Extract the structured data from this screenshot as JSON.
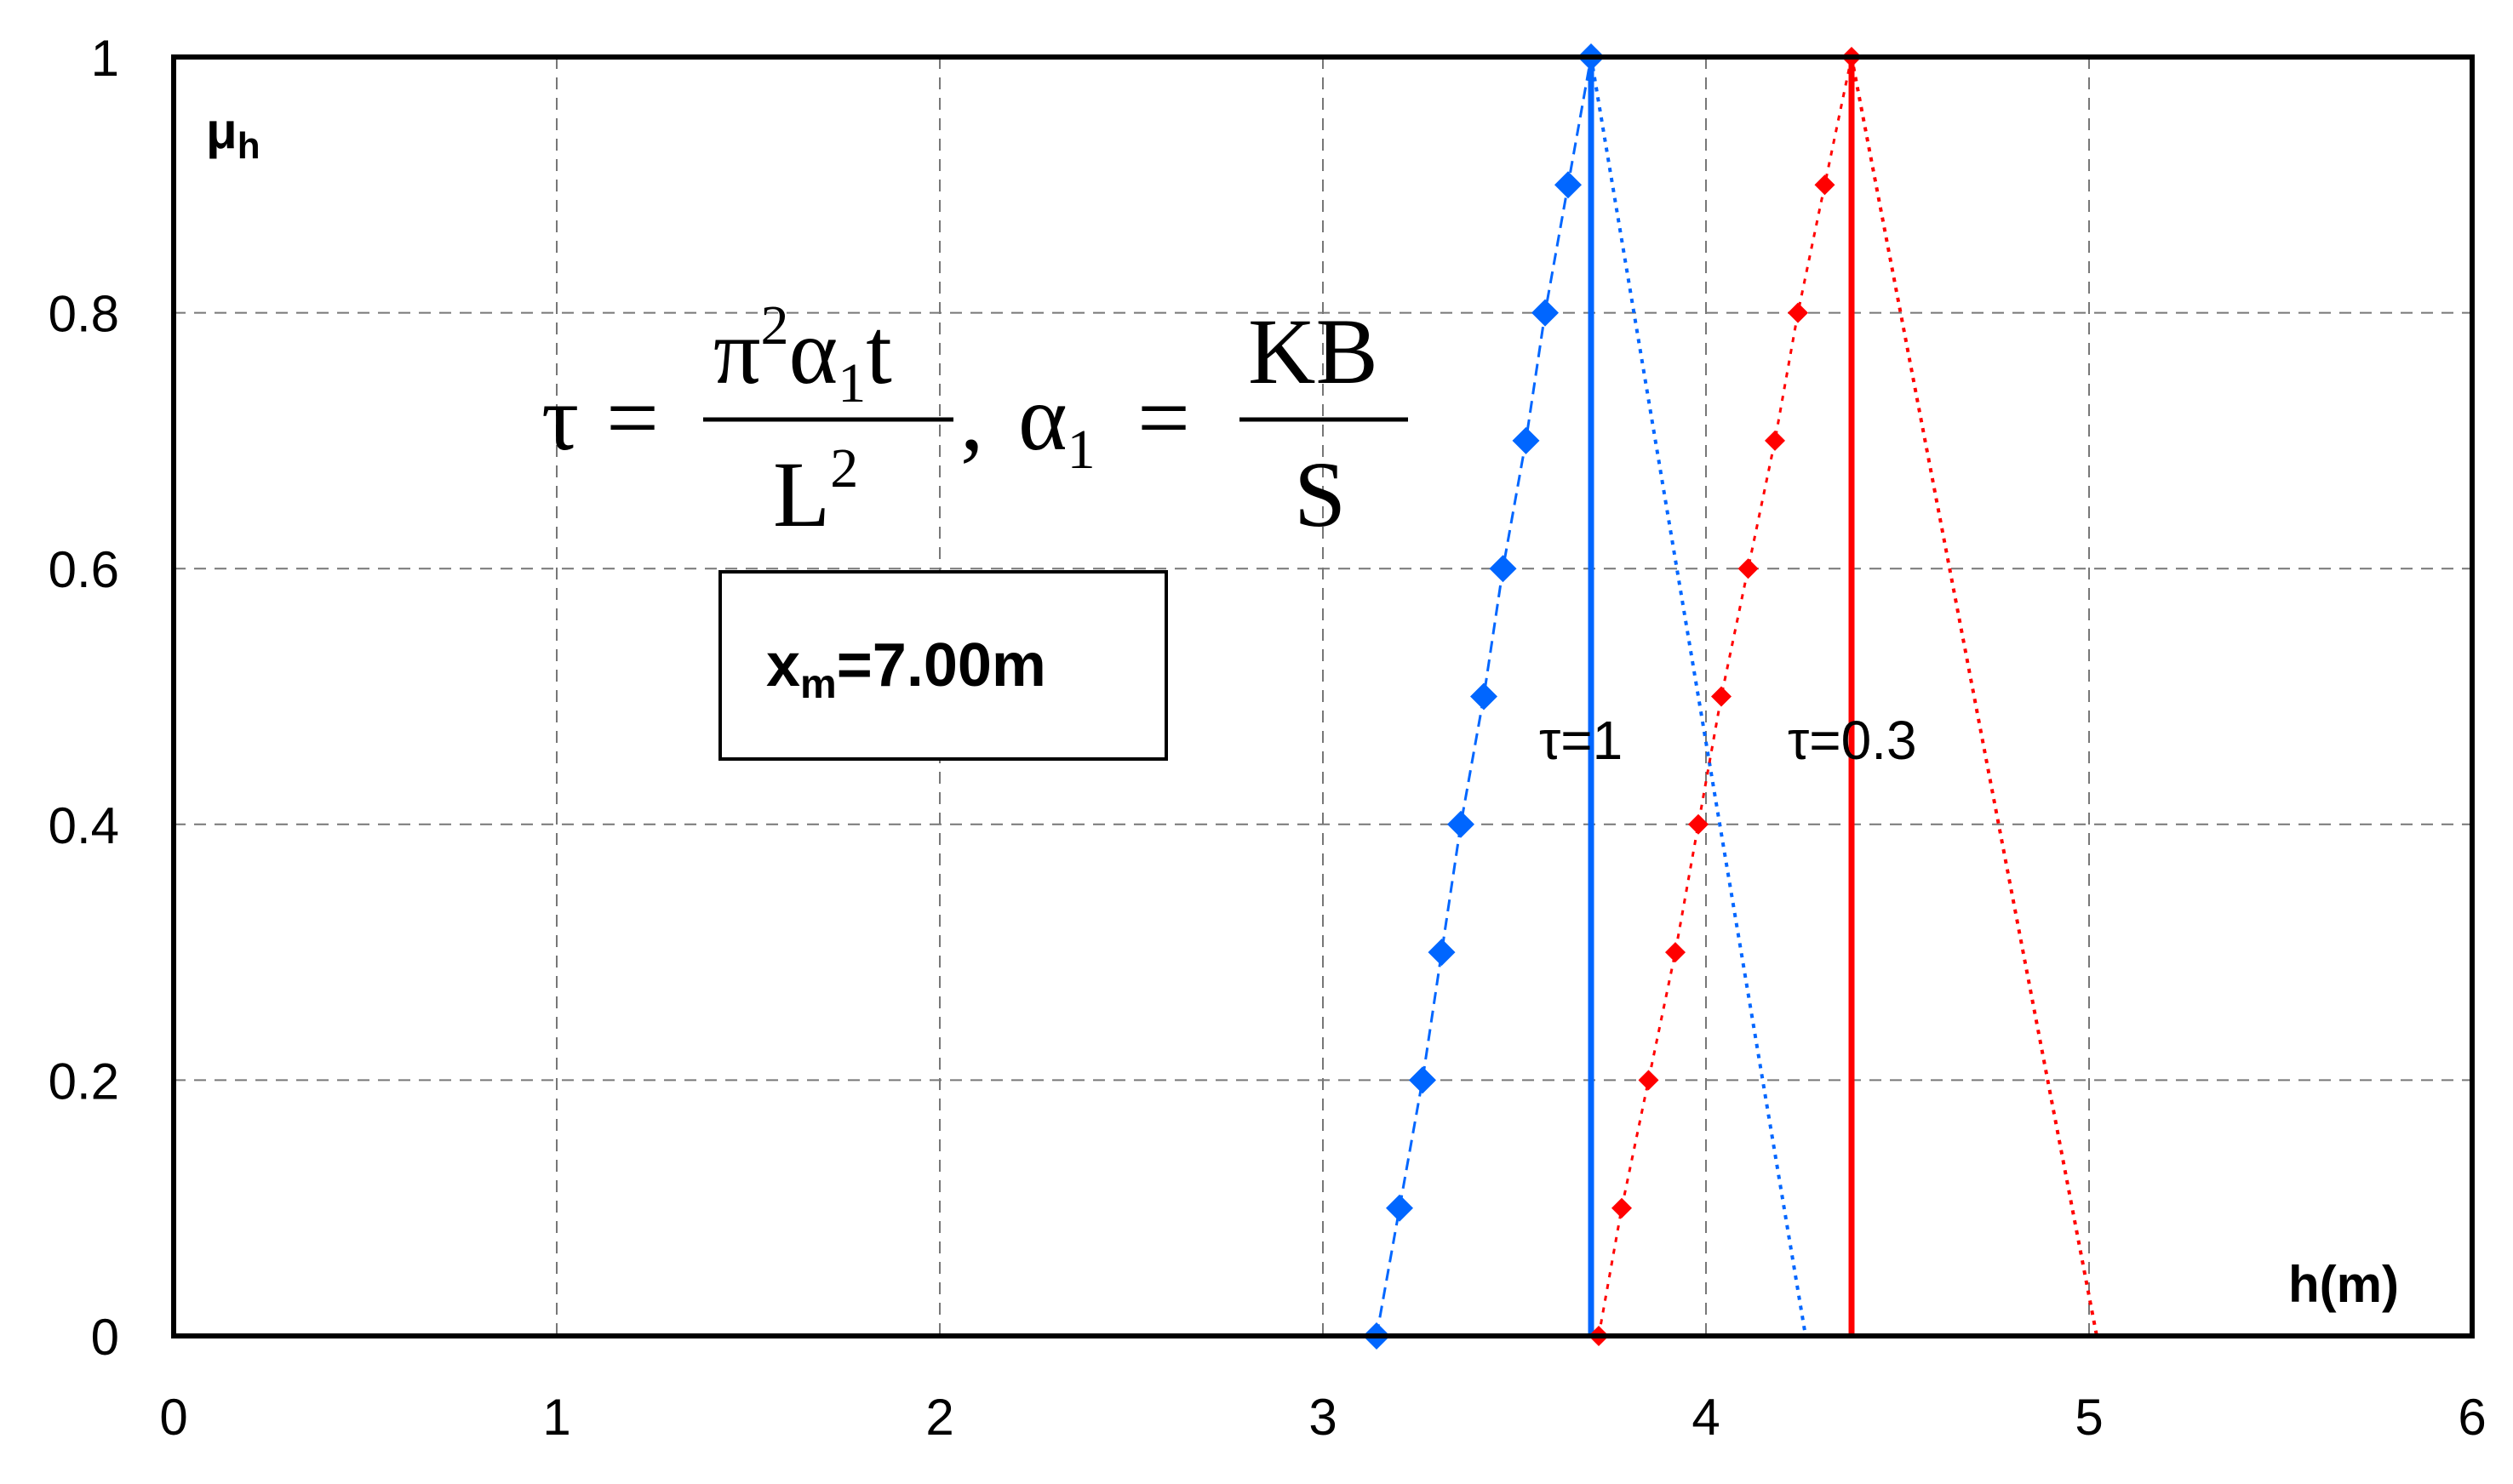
{
  "chart_data": {
    "type": "scatter",
    "xlabel": "h(m)",
    "ylabel": "μ",
    "ylabel_sub": "h",
    "xlim": [
      0,
      6
    ],
    "ylim": [
      0,
      1
    ],
    "x_ticks": [
      0,
      1,
      2,
      3,
      4,
      5,
      6
    ],
    "y_ticks": [
      0,
      0.2,
      0.4,
      0.6,
      0.8,
      1
    ],
    "x_tick_labels": [
      "0",
      "1",
      "2",
      "3",
      "4",
      "5",
      "6"
    ],
    "y_tick_labels": [
      "0",
      "0.2",
      "0.4",
      "0.6",
      "0.8",
      "1"
    ],
    "grid": true,
    "series": [
      {
        "name": "τ=1",
        "color": "#0066ff",
        "center": 3.7,
        "points": [
          [
            3.14,
            0
          ],
          [
            3.2,
            0.1
          ],
          [
            3.26,
            0.2
          ],
          [
            3.31,
            0.3
          ],
          [
            3.36,
            0.4
          ],
          [
            3.42,
            0.5
          ],
          [
            3.47,
            0.6
          ],
          [
            3.53,
            0.7
          ],
          [
            3.58,
            0.8
          ],
          [
            3.64,
            0.9
          ],
          [
            3.7,
            1
          ]
        ],
        "right_line": [
          [
            3.7,
            1
          ],
          [
            4.26,
            0
          ]
        ]
      },
      {
        "name": "τ=0.3",
        "color": "#ff0000",
        "center": 4.38,
        "points": [
          [
            3.72,
            0
          ],
          [
            3.78,
            0.1
          ],
          [
            3.85,
            0.2
          ],
          [
            3.92,
            0.3
          ],
          [
            3.98,
            0.4
          ],
          [
            4.04,
            0.5
          ],
          [
            4.11,
            0.6
          ],
          [
            4.18,
            0.7
          ],
          [
            4.24,
            0.8
          ],
          [
            4.31,
            0.9
          ],
          [
            4.38,
            1
          ]
        ],
        "right_line": [
          [
            4.38,
            1
          ],
          [
            5.02,
            0
          ]
        ]
      }
    ],
    "annotations": {
      "series_label_1": "τ=1",
      "series_label_2": "τ=0.3",
      "formula": {
        "tau": "τ",
        "eq": "=",
        "num_pi": "π",
        "num_exp": "2",
        "num_alpha": "α",
        "num_alpha_sub": "1",
        "num_t": "t",
        "den_L": "L",
        "den_exp": "2",
        "sep": ",",
        "alpha": "α",
        "alpha_sub": "1",
        "eq2": "=",
        "num2": "KB",
        "den2": "S"
      },
      "box": {
        "prefix": "x",
        "sub": "m",
        "value": "=7.00m"
      }
    }
  }
}
